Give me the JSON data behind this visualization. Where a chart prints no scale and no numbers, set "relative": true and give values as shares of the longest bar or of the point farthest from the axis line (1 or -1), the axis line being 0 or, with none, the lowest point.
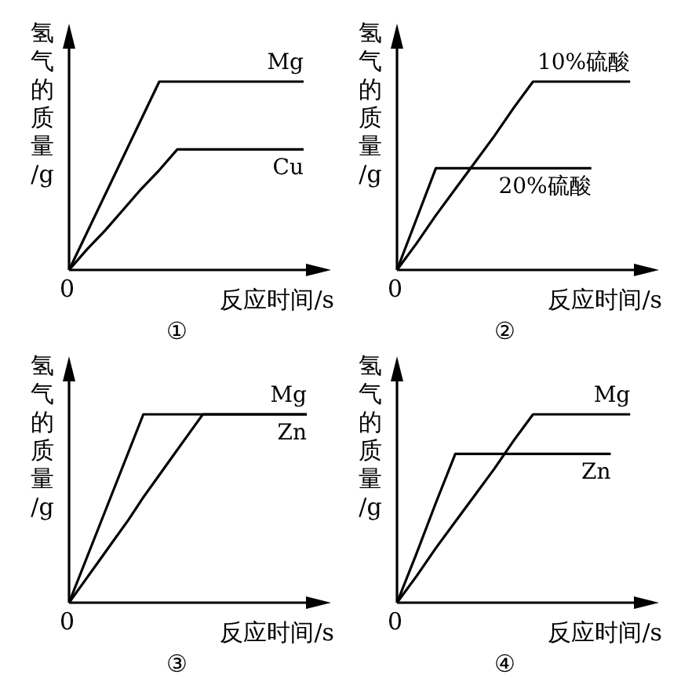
{
  "chart_data": [
    {
      "type": "line",
      "title": "①",
      "xlabel": "反应时间/s",
      "ylabel": "氢气的质量/g",
      "relative": true,
      "marker": "none",
      "line_style": "solid",
      "annotations": [
        "0"
      ],
      "categories": [
        null,
        null,
        null,
        null,
        null,
        null,
        null,
        null,
        null,
        null,
        null,
        null,
        null,
        null
      ],
      "series": [
        {
          "name": "Mg",
          "color": "#000000",
          "values": [
            0,
            0.2,
            0.4,
            0.6,
            0.8,
            1,
            1,
            1,
            1,
            1,
            1,
            1,
            1,
            1
          ]
        },
        {
          "name": "Cu",
          "color": "#000000",
          "values": [
            0,
            0.11,
            0.21,
            0.32,
            0.43,
            0.53,
            0.64,
            0.64,
            0.64,
            0.64,
            0.64,
            0.64,
            0.64,
            0.64
          ]
        }
      ]
    },
    {
      "type": "line",
      "title": "②",
      "xlabel": "反应时间/s",
      "ylabel": "氢气的质量/g",
      "relative": true,
      "marker": "none",
      "line_style": "solid",
      "annotations": [
        "0"
      ],
      "categories": [
        null,
        null,
        null,
        null,
        null,
        null,
        null,
        null,
        null,
        null,
        null,
        null,
        null
      ],
      "series": [
        {
          "name": "10%硫酸",
          "color": "#000000",
          "values": [
            0,
            0.14,
            0.29,
            0.43,
            0.57,
            0.71,
            0.86,
            1,
            1,
            1,
            1,
            1,
            1
          ]
        },
        {
          "name": "20%硫酸",
          "color": "#000000",
          "values": [
            0,
            0.27,
            0.54,
            0.54,
            0.54,
            0.54,
            0.54,
            0.54,
            0.54,
            0.54,
            0.54,
            null,
            null
          ]
        }
      ]
    },
    {
      "type": "line",
      "title": "③",
      "xlabel": "反应时间/s",
      "ylabel": "氢气的质量/g",
      "relative": true,
      "marker": "none",
      "line_style": "solid",
      "annotations": [
        "0"
      ],
      "categories": [
        null,
        null,
        null,
        null,
        null,
        null,
        null,
        null,
        null,
        null,
        null,
        null,
        null,
        null,
        null,
        null,
        null
      ],
      "series": [
        {
          "name": "Mg",
          "color": "#000000",
          "values": [
            0,
            0.2,
            0.4,
            0.6,
            0.8,
            1,
            1,
            1,
            1,
            1,
            1,
            1,
            1,
            1,
            1,
            1,
            1
          ]
        },
        {
          "name": "Zn",
          "color": "#000000",
          "values": [
            0,
            0.11,
            0.22,
            0.33,
            0.44,
            0.56,
            0.67,
            0.78,
            0.89,
            1,
            1,
            1,
            1,
            1,
            1,
            1,
            1
          ]
        }
      ]
    },
    {
      "type": "line",
      "title": "④",
      "xlabel": "反应时间/s",
      "ylabel": "氢气的质量/g",
      "relative": true,
      "marker": "none",
      "line_style": "solid",
      "annotations": [
        "0"
      ],
      "categories": [
        null,
        null,
        null,
        null,
        null,
        null,
        null,
        null,
        null,
        null,
        null,
        null,
        null
      ],
      "series": [
        {
          "name": "Mg",
          "color": "#000000",
          "values": [
            0,
            0.14,
            0.29,
            0.43,
            0.57,
            0.71,
            0.86,
            1,
            1,
            1,
            1,
            1,
            1
          ]
        },
        {
          "name": "Zn",
          "color": "#000000",
          "values": [
            0,
            0.26,
            0.53,
            0.79,
            0.79,
            0.79,
            0.79,
            0.79,
            0.79,
            0.79,
            0.79,
            0.79,
            null
          ]
        }
      ]
    }
  ]
}
